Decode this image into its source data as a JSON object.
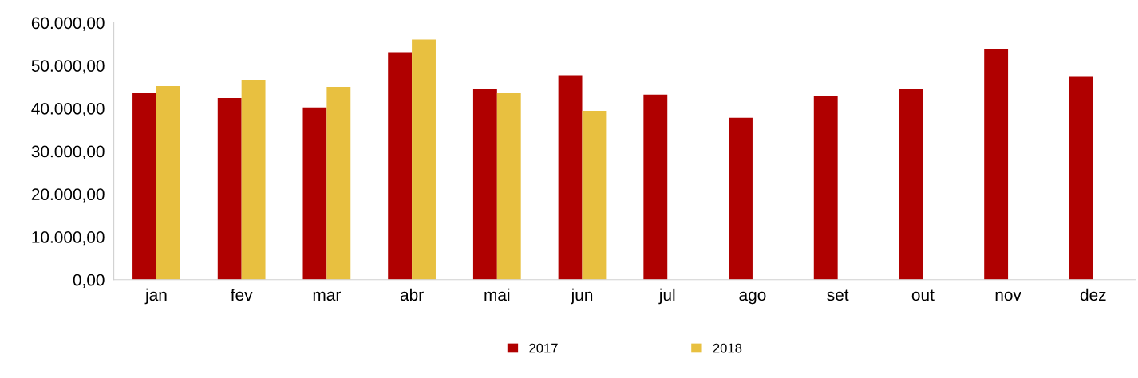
{
  "chart_data": {
    "type": "bar",
    "categories": [
      "jan",
      "fev",
      "mar",
      "abr",
      "mai",
      "jun",
      "jul",
      "ago",
      "set",
      "out",
      "nov",
      "dez"
    ],
    "series": [
      {
        "name": "2017",
        "color": "#b00000",
        "values": [
          43700,
          42400,
          40200,
          53100,
          44500,
          47700,
          43200,
          37800,
          42800,
          44500,
          53800,
          47500
        ]
      },
      {
        "name": "2018",
        "color": "#e8c040",
        "values": [
          45200,
          46700,
          45000,
          56100,
          43600,
          39400,
          null,
          null,
          null,
          null,
          null,
          null
        ]
      }
    ],
    "ylim": [
      0,
      60000
    ],
    "yticks": [
      {
        "value": 0,
        "label": "0,00"
      },
      {
        "value": 10000,
        "label": "10.000,00"
      },
      {
        "value": 20000,
        "label": "20.000,00"
      },
      {
        "value": 30000,
        "label": "30.000,00"
      },
      {
        "value": 40000,
        "label": "40.000,00"
      },
      {
        "value": 50000,
        "label": "50.000,00"
      },
      {
        "value": 60000,
        "label": "60.000,00"
      }
    ],
    "grid": false,
    "legend": "bottom"
  }
}
